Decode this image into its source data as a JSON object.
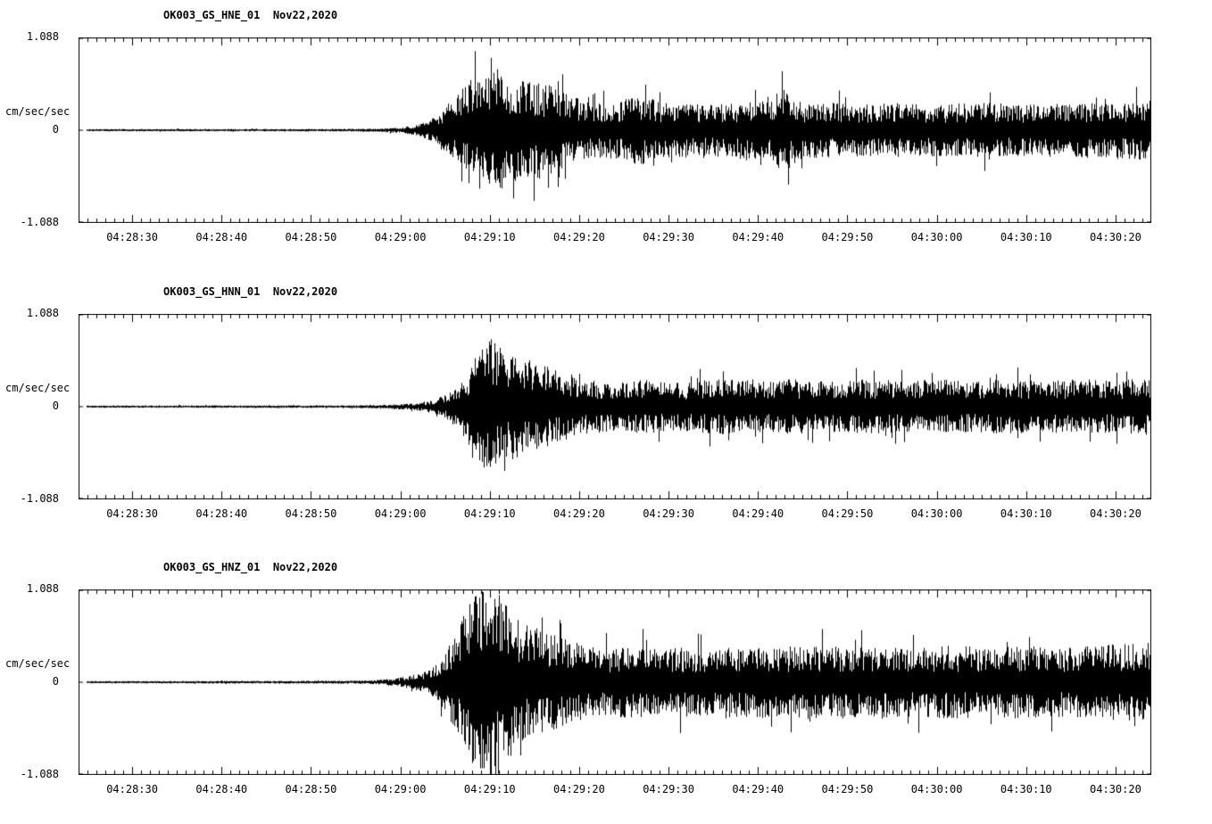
{
  "accent_colors": {
    "trace": "#000000",
    "background": "#ffffff"
  },
  "chart_data": [
    {
      "type": "line",
      "title": "OK003_GS_HNE_01  Nov22,2020",
      "ylabel": "cm/sec/sec",
      "ylim": [
        -1.088,
        1.088
      ],
      "y_tick_labels": [
        "1.088",
        "0",
        "-1.088"
      ],
      "x_tick_labels": [
        "04:28:30",
        "04:28:40",
        "04:28:50",
        "04:29:00",
        "04:29:10",
        "04:29:20",
        "04:29:30",
        "04:29:40",
        "04:29:50",
        "04:30:00",
        "04:30:10",
        "04:30:20"
      ],
      "x_tick_seconds": [
        30,
        40,
        50,
        60,
        70,
        80,
        90,
        100,
        110,
        120,
        130,
        140
      ],
      "x_range_seconds": [
        24,
        144
      ],
      "time_window": {
        "start": "04:28:24",
        "end": "04:30:24"
      },
      "envelope": [
        [
          24,
          0.012
        ],
        [
          52,
          0.013
        ],
        [
          57,
          0.016
        ],
        [
          60,
          0.03
        ],
        [
          62,
          0.06
        ],
        [
          63,
          0.1
        ],
        [
          64,
          0.16
        ],
        [
          65,
          0.26
        ],
        [
          66,
          0.36
        ],
        [
          67,
          0.46
        ],
        [
          68,
          0.56
        ],
        [
          69,
          0.66
        ],
        [
          70,
          0.72
        ],
        [
          71,
          0.66
        ],
        [
          72,
          0.6
        ],
        [
          74,
          0.55
        ],
        [
          76,
          0.52
        ],
        [
          78,
          0.42
        ],
        [
          80,
          0.34
        ],
        [
          82,
          0.3
        ],
        [
          85,
          0.32
        ],
        [
          87,
          0.4
        ],
        [
          89,
          0.3
        ],
        [
          92,
          0.3
        ],
        [
          95,
          0.28
        ],
        [
          98,
          0.3
        ],
        [
          100,
          0.32
        ],
        [
          103,
          0.45
        ],
        [
          105,
          0.3
        ],
        [
          108,
          0.3
        ],
        [
          112,
          0.28
        ],
        [
          116,
          0.3
        ],
        [
          120,
          0.28
        ],
        [
          125,
          0.3
        ],
        [
          130,
          0.28
        ],
        [
          135,
          0.3
        ],
        [
          140,
          0.3
        ],
        [
          144,
          0.33
        ]
      ]
    },
    {
      "type": "line",
      "title": "OK003_GS_HNN_01  Nov22,2020",
      "ylabel": "cm/sec/sec",
      "ylim": [
        -1.088,
        1.088
      ],
      "y_tick_labels": [
        "1.088",
        "0",
        "-1.088"
      ],
      "x_tick_labels": [
        "04:28:30",
        "04:28:40",
        "04:28:50",
        "04:29:00",
        "04:29:10",
        "04:29:20",
        "04:29:30",
        "04:29:40",
        "04:29:50",
        "04:30:00",
        "04:30:10",
        "04:30:20"
      ],
      "x_tick_seconds": [
        30,
        40,
        50,
        60,
        70,
        80,
        90,
        100,
        110,
        120,
        130,
        140
      ],
      "x_range_seconds": [
        24,
        144
      ],
      "time_window": {
        "start": "04:28:24",
        "end": "04:30:24"
      },
      "envelope": [
        [
          24,
          0.012
        ],
        [
          54,
          0.014
        ],
        [
          58,
          0.02
        ],
        [
          61,
          0.035
        ],
        [
          63,
          0.06
        ],
        [
          64,
          0.09
        ],
        [
          65,
          0.13
        ],
        [
          66,
          0.2
        ],
        [
          67,
          0.32
        ],
        [
          68,
          0.48
        ],
        [
          69,
          0.62
        ],
        [
          70,
          0.75
        ],
        [
          71,
          0.66
        ],
        [
          72,
          0.56
        ],
        [
          73,
          0.6
        ],
        [
          75,
          0.48
        ],
        [
          77,
          0.42
        ],
        [
          79,
          0.36
        ],
        [
          81,
          0.3
        ],
        [
          84,
          0.26
        ],
        [
          87,
          0.3
        ],
        [
          90,
          0.26
        ],
        [
          93,
          0.28
        ],
        [
          96,
          0.3
        ],
        [
          100,
          0.28
        ],
        [
          104,
          0.3
        ],
        [
          108,
          0.28
        ],
        [
          112,
          0.3
        ],
        [
          116,
          0.28
        ],
        [
          120,
          0.3
        ],
        [
          124,
          0.28
        ],
        [
          128,
          0.3
        ],
        [
          132,
          0.28
        ],
        [
          136,
          0.3
        ],
        [
          140,
          0.29
        ],
        [
          144,
          0.31
        ]
      ]
    },
    {
      "type": "line",
      "title": "OK003_GS_HNZ_01  Nov22,2020",
      "ylabel": "cm/sec/sec",
      "ylim": [
        -1.088,
        1.088
      ],
      "y_tick_labels": [
        "1.088",
        "0",
        "-1.088"
      ],
      "x_tick_labels": [
        "04:28:30",
        "04:28:40",
        "04:28:50",
        "04:29:00",
        "04:29:10",
        "04:29:20",
        "04:29:30",
        "04:29:40",
        "04:29:50",
        "04:30:00",
        "04:30:10",
        "04:30:20"
      ],
      "x_tick_seconds": [
        30,
        40,
        50,
        60,
        70,
        80,
        90,
        100,
        110,
        120,
        130,
        140
      ],
      "x_range_seconds": [
        24,
        144
      ],
      "time_window": {
        "start": "04:28:24",
        "end": "04:30:24"
      },
      "envelope": [
        [
          24,
          0.012
        ],
        [
          50,
          0.015
        ],
        [
          56,
          0.02
        ],
        [
          59,
          0.035
        ],
        [
          61,
          0.07
        ],
        [
          63,
          0.12
        ],
        [
          64,
          0.2
        ],
        [
          65,
          0.32
        ],
        [
          66,
          0.5
        ],
        [
          67,
          0.72
        ],
        [
          68,
          0.9
        ],
        [
          69,
          1.0
        ],
        [
          70,
          0.95
        ],
        [
          71,
          1.0
        ],
        [
          72,
          0.85
        ],
        [
          73,
          0.72
        ],
        [
          74,
          0.62
        ],
        [
          75,
          0.66
        ],
        [
          76,
          0.56
        ],
        [
          78,
          0.48
        ],
        [
          80,
          0.42
        ],
        [
          83,
          0.38
        ],
        [
          86,
          0.4
        ],
        [
          89,
          0.36
        ],
        [
          92,
          0.38
        ],
        [
          95,
          0.36
        ],
        [
          98,
          0.4
        ],
        [
          102,
          0.38
        ],
        [
          106,
          0.4
        ],
        [
          110,
          0.38
        ],
        [
          114,
          0.4
        ],
        [
          118,
          0.38
        ],
        [
          122,
          0.4
        ],
        [
          126,
          0.38
        ],
        [
          130,
          0.4
        ],
        [
          134,
          0.38
        ],
        [
          138,
          0.4
        ],
        [
          141,
          0.42
        ],
        [
          144,
          0.44
        ]
      ]
    }
  ]
}
